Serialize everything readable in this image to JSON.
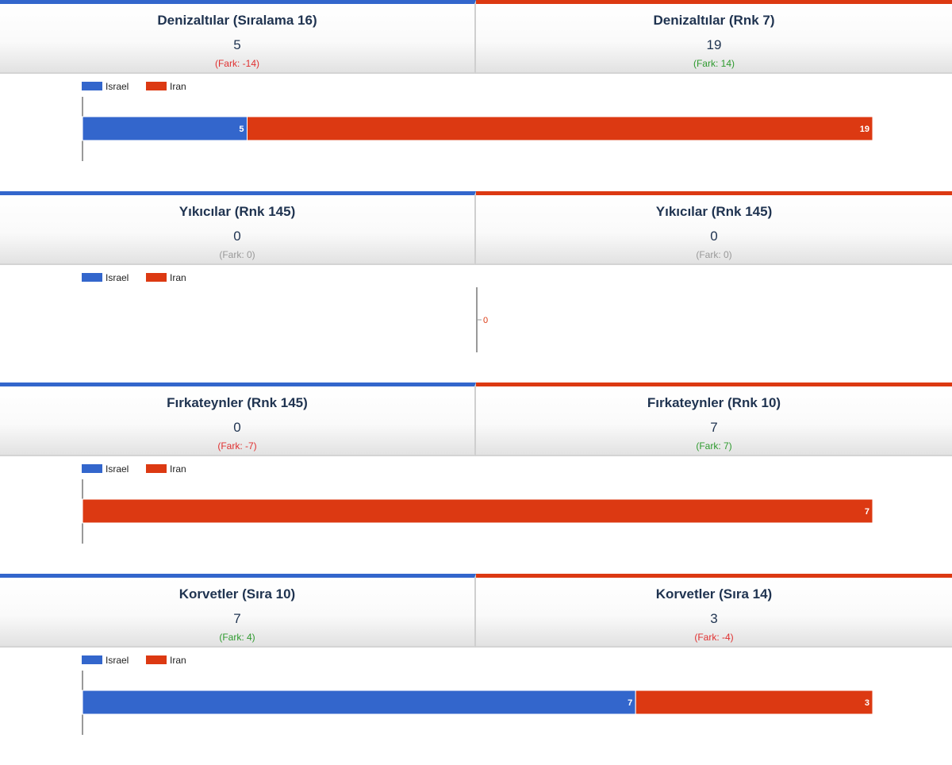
{
  "legend": [
    {
      "name": "Israel",
      "color": "#3366cc"
    },
    {
      "name": "Iran",
      "color": "#dc3912"
    }
  ],
  "sections": [
    {
      "left": {
        "title": "Denizaltılar (Sıralama 16)",
        "value": "5",
        "diff": "(Fark: -14)",
        "diff_sign": "neg"
      },
      "right": {
        "title": "Denizaltılar (Rnk 7)",
        "value": "19",
        "diff": "(Fark: 14)",
        "diff_sign": "pos"
      }
    },
    {
      "left": {
        "title": "Yıkıcılar (Rnk 145)",
        "value": "0",
        "diff": "(Fark: 0)",
        "diff_sign": "zero"
      },
      "right": {
        "title": "Yıkıcılar (Rnk 145)",
        "value": "0",
        "diff": "(Fark: 0)",
        "diff_sign": "zero"
      }
    },
    {
      "left": {
        "title": "Fırkateynler (Rnk 145)",
        "value": "0",
        "diff": "(Fark: -7)",
        "diff_sign": "neg"
      },
      "right": {
        "title": "Fırkateynler (Rnk 10)",
        "value": "7",
        "diff": "(Fark: 7)",
        "diff_sign": "pos"
      }
    },
    {
      "left": {
        "title": "Korvetler (Sıra 10)",
        "value": "7",
        "diff": "(Fark: 4)",
        "diff_sign": "pos"
      },
      "right": {
        "title": "Korvetler (Sıra 14)",
        "value": "3",
        "diff": "(Fark: -4)",
        "diff_sign": "neg"
      }
    }
  ],
  "chart_data": [
    {
      "type": "bar",
      "stacked": true,
      "orientation": "horizontal",
      "legend_position": "top-left",
      "series": [
        {
          "name": "Israel",
          "values": [
            5
          ]
        },
        {
          "name": "Iran",
          "values": [
            19
          ]
        }
      ]
    },
    {
      "type": "bar",
      "stacked": true,
      "orientation": "horizontal",
      "legend_position": "top-left",
      "series": [
        {
          "name": "Israel",
          "values": [
            0
          ]
        },
        {
          "name": "Iran",
          "values": [
            0
          ]
        }
      ]
    },
    {
      "type": "bar",
      "stacked": true,
      "orientation": "horizontal",
      "legend_position": "top-left",
      "series": [
        {
          "name": "Israel",
          "values": [
            0
          ]
        },
        {
          "name": "Iran",
          "values": [
            7
          ]
        }
      ]
    },
    {
      "type": "bar",
      "stacked": true,
      "orientation": "horizontal",
      "legend_position": "top-left",
      "series": [
        {
          "name": "Israel",
          "values": [
            7
          ]
        },
        {
          "name": "Iran",
          "values": [
            3
          ]
        }
      ]
    }
  ]
}
